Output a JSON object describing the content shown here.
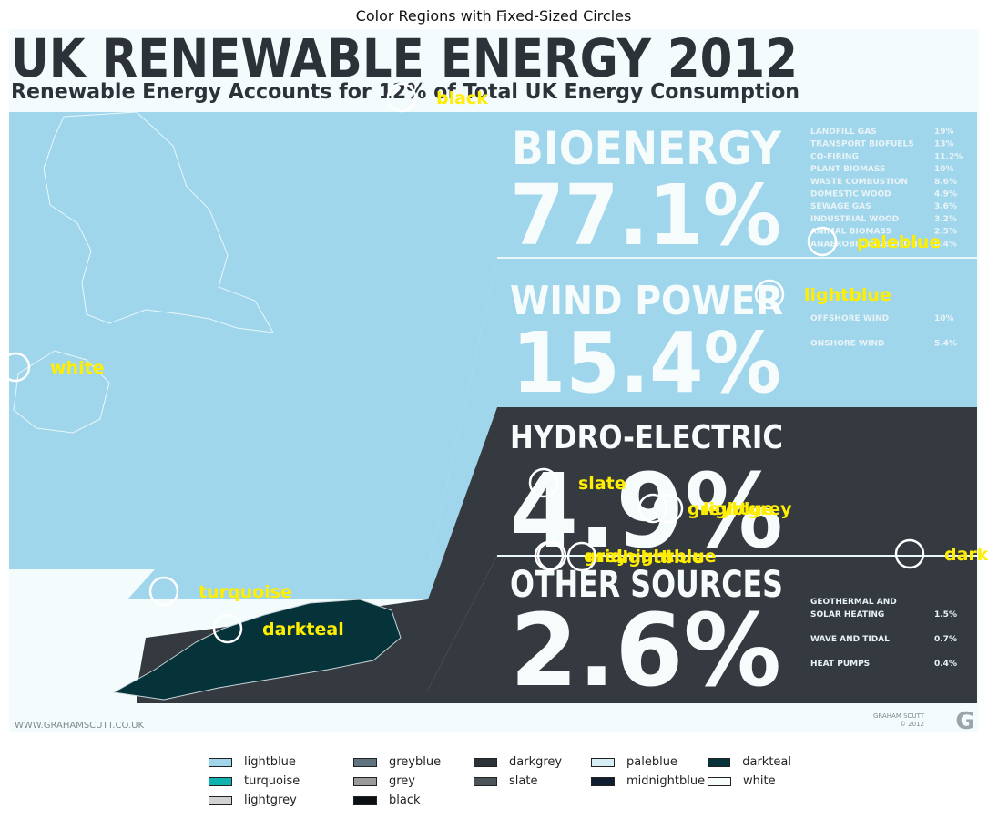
{
  "chart_data": {
    "type": "image-annotation",
    "title": "Color Regions with Fixed-Sized Circles",
    "infographic": {
      "headline": "UK RENEWABLE ENERGY 2012",
      "subheadline": "Renewable Energy Accounts for 12% of Total UK Energy Consumption",
      "website": "WWW.GRAHAMSCUTT.CO.UK",
      "signature_line1": "GRAHAM SCUTT",
      "signature_line2": "© 2012",
      "logo_letter": "G",
      "sections": [
        {
          "name": "BIOENERGY",
          "value": "77.1%",
          "breakdown": [
            {
              "label": "LANDFILL GAS",
              "value": "19%"
            },
            {
              "label": "TRANSPORT BIOFUELS",
              "value": "13%"
            },
            {
              "label": "CO-FIRING",
              "value": "11.2%"
            },
            {
              "label": "PLANT BIOMASS",
              "value": "10%"
            },
            {
              "label": "WASTE COMBUSTION",
              "value": "8.6%"
            },
            {
              "label": "DOMESTIC WOOD",
              "value": "4.9%"
            },
            {
              "label": "SEWAGE GAS",
              "value": "3.6%"
            },
            {
              "label": "INDUSTRIAL WOOD",
              "value": "3.2%"
            },
            {
              "label": "ANIMAL BIOMASS",
              "value": "2.5%"
            },
            {
              "label": "ANAEROBIC DIGESTION",
              "value": "0.4%"
            }
          ]
        },
        {
          "name": "WIND POWER",
          "value": "15.4%",
          "breakdown": [
            {
              "label": "OFFSHORE WIND",
              "value": "10%"
            },
            {
              "label": "ONSHORE WIND",
              "value": "5.4%"
            }
          ]
        },
        {
          "name": "HYDRO-ELECTRIC",
          "value": "4.9%",
          "breakdown": []
        },
        {
          "name": "OTHER SOURCES",
          "value": "2.6%",
          "breakdown": [
            {
              "label": "GEOTHERMAL AND",
              "label2": "SOLAR HEATING",
              "value": "1.5%"
            },
            {
              "label": "WAVE AND TIDAL",
              "value": "0.7%"
            },
            {
              "label": "HEAT PUMPS",
              "value": "0.4%"
            }
          ]
        }
      ]
    },
    "annotations": [
      {
        "label": "black"
      },
      {
        "label": "paleblue"
      },
      {
        "label": "lightblue"
      },
      {
        "label": "white"
      },
      {
        "label": "slate"
      },
      {
        "label": "greyblue"
      },
      {
        "label": "lightgrey"
      },
      {
        "label": "midnightblue"
      },
      {
        "label": "grey"
      },
      {
        "label": "lightblue"
      },
      {
        "label": "darkgrey"
      },
      {
        "label": "turquoise"
      },
      {
        "label": "darkteal"
      }
    ],
    "legend": {
      "placement": "bottom-center",
      "entries": [
        {
          "label": "lightblue",
          "color": "#9fd6ec"
        },
        {
          "label": "darkteal",
          "color": "#06323a"
        },
        {
          "label": "midnightblue",
          "color": "#0f1e2e"
        },
        {
          "label": "greyblue",
          "color": "#5f7480"
        },
        {
          "label": "turquoise",
          "color": "#10b2b0"
        },
        {
          "label": "white",
          "color": "#f6fcfc"
        },
        {
          "label": "darkgrey",
          "color": "#2c3338"
        },
        {
          "label": "grey",
          "color": "#9a9a9a"
        },
        {
          "label": "lightgrey",
          "color": "#d2d2d2"
        },
        {
          "label": "paleblue",
          "color": "#d8eef5"
        },
        {
          "label": "slate",
          "color": "#4a5459"
        },
        {
          "label": "black",
          "color": "#0b1014"
        }
      ]
    },
    "colors": {
      "label_text": "#ffee00",
      "circle_stroke": "#ffffff",
      "panel_light": "#9fd6ec",
      "panel_dark": "#343a40",
      "headline": "#2d3238",
      "background": "#f3fbfc"
    }
  }
}
